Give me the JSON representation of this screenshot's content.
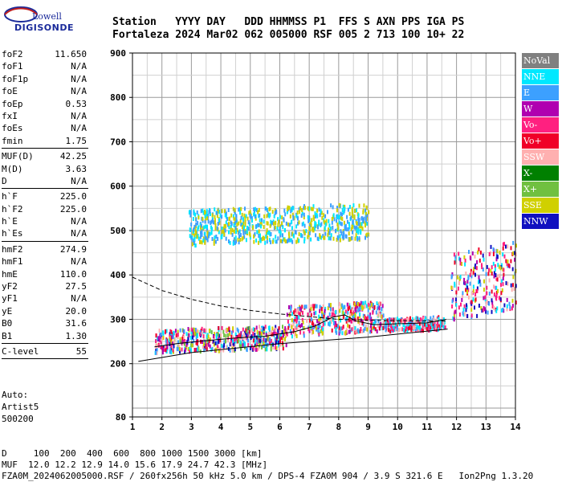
{
  "logo": {
    "line1": "Lowell",
    "line2": "DIGISONDE"
  },
  "header": {
    "labels": "Station   YYYY DAY   DDD HHMMSS P1  FFS S AXN PPS IGA PS",
    "values": "Fortaleza 2024 Mar02 062 005000 RSF 005 2 713 100 10+ 22"
  },
  "params": {
    "group1": [
      {
        "label": "foF2",
        "value": "11.650"
      },
      {
        "label": "foF1",
        "value": "N/A"
      },
      {
        "label": "foF1p",
        "value": "N/A"
      },
      {
        "label": "foE",
        "value": "N/A"
      },
      {
        "label": "foEp",
        "value": "0.53"
      },
      {
        "label": "fxI",
        "value": "N/A"
      },
      {
        "label": "foEs",
        "value": "N/A"
      },
      {
        "label": "fmin",
        "value": "1.75"
      }
    ],
    "group2": [
      {
        "label": "MUF(D)",
        "value": "42.25"
      },
      {
        "label": "M(D)",
        "value": "3.63"
      },
      {
        "label": "D",
        "value": "N/A"
      }
    ],
    "group3": [
      {
        "label": "h`F",
        "value": "225.0"
      },
      {
        "label": "h`F2",
        "value": "225.0"
      },
      {
        "label": "h`E",
        "value": "N/A"
      },
      {
        "label": "h`Es",
        "value": "N/A"
      }
    ],
    "group4": [
      {
        "label": "hmF2",
        "value": "274.9"
      },
      {
        "label": "hmF1",
        "value": "N/A"
      },
      {
        "label": "hmE",
        "value": "110.0"
      },
      {
        "label": "yF2",
        "value": "27.5"
      },
      {
        "label": "yF1",
        "value": "N/A"
      },
      {
        "label": "yE",
        "value": "20.0"
      },
      {
        "label": "B0",
        "value": "31.6"
      },
      {
        "label": "B1",
        "value": "1.30"
      }
    ],
    "group5": [
      {
        "label": "C-level",
        "value": "55"
      }
    ]
  },
  "auto": {
    "line1": "Auto:",
    "line2": "Artist5",
    "line3": "500200"
  },
  "legend": [
    {
      "label": "NoVal",
      "color": "#808080"
    },
    {
      "label": "NNE",
      "color": "#00e8ff"
    },
    {
      "label": "E",
      "color": "#3ca0ff"
    },
    {
      "label": "W",
      "color": "#b000b0"
    },
    {
      "label": "Vo-",
      "color": "#ff2080"
    },
    {
      "label": "Vo+",
      "color": "#f00028"
    },
    {
      "label": "SSW",
      "color": "#ffb0b0"
    },
    {
      "label": "X-",
      "color": "#008000"
    },
    {
      "label": "X+",
      "color": "#70c040"
    },
    {
      "label": "SSE",
      "color": "#d0d000"
    },
    {
      "label": "NNW",
      "color": "#1010c0"
    }
  ],
  "bottom": {
    "line1": "D     100  200  400  600  800 1000 1500 3000 [km]",
    "line2": "MUF  12.0 12.2 12.9 14.0 15.6 17.9 24.7 42.3 [MHz]",
    "line3": "FZA0M_2024062005000.RSF / 260fx256h 50 kHz 5.0 km / DPS-4 FZA0M 904 / 3.9 S 321.6 E   Ion2Png 1.3.20"
  },
  "chart_data": {
    "type": "scatter",
    "xlim": [
      1,
      14
    ],
    "ylim": [
      80,
      900
    ],
    "x_ticks": [
      1,
      2,
      3,
      4,
      5,
      6,
      7,
      8,
      9,
      10,
      11,
      12,
      13,
      14
    ],
    "y_ticks": [
      80,
      200,
      300,
      400,
      500,
      600,
      700,
      800,
      900
    ],
    "grid": true,
    "legend_position": "right",
    "profile_solid": [
      [
        1.2,
        205
      ],
      [
        3,
        225
      ],
      [
        6,
        245
      ],
      [
        9,
        260
      ],
      [
        11.7,
        278
      ]
    ],
    "profile_dashed": [
      [
        1,
        395
      ],
      [
        2,
        365
      ],
      [
        3,
        345
      ],
      [
        4,
        330
      ],
      [
        5,
        320
      ],
      [
        6,
        312
      ],
      [
        7,
        306
      ],
      [
        8,
        300
      ],
      [
        9,
        298
      ],
      [
        10,
        297
      ],
      [
        11.7,
        296
      ]
    ],
    "trace_o": [
      [
        1.75,
        238
      ],
      [
        2.5,
        245
      ],
      [
        3.5,
        252
      ],
      [
        4.5,
        258
      ],
      [
        5.5,
        262
      ],
      [
        6.5,
        272
      ],
      [
        7.2,
        285
      ],
      [
        7.8,
        305
      ],
      [
        8.2,
        310
      ],
      [
        8.6,
        296
      ],
      [
        9.2,
        288
      ],
      [
        10,
        290
      ],
      [
        11,
        292
      ],
      [
        11.65,
        300
      ]
    ],
    "bands": [
      {
        "x": [
          1.75,
          6.2
        ],
        "y": [
          228,
          290
        ],
        "colors": [
          "NNE",
          "E",
          "Vo-",
          "Vo+",
          "SSW",
          "X+",
          "SSE",
          "W",
          "NNW"
        ]
      },
      {
        "x": [
          6.2,
          9.5
        ],
        "y": [
          265,
          345
        ],
        "colors": [
          "E",
          "NNE",
          "Vo-",
          "Vo+",
          "SSW",
          "W",
          "SSE"
        ]
      },
      {
        "x": [
          9.5,
          11.6
        ],
        "y": [
          275,
          310
        ],
        "colors": [
          "Vo+",
          "Vo-",
          "E",
          "SSW",
          "NNE"
        ]
      },
      {
        "x": [
          11.8,
          14
        ],
        "y": [
          300,
          480
        ],
        "colors": [
          "Vo+",
          "Vo-",
          "E",
          "NNE",
          "W",
          "SSW",
          "SSE",
          "NNW"
        ]
      },
      {
        "x": [
          2.9,
          9
        ],
        "y": [
          470,
          565
        ],
        "colors": [
          "E",
          "NNE",
          "SSE"
        ]
      }
    ]
  }
}
